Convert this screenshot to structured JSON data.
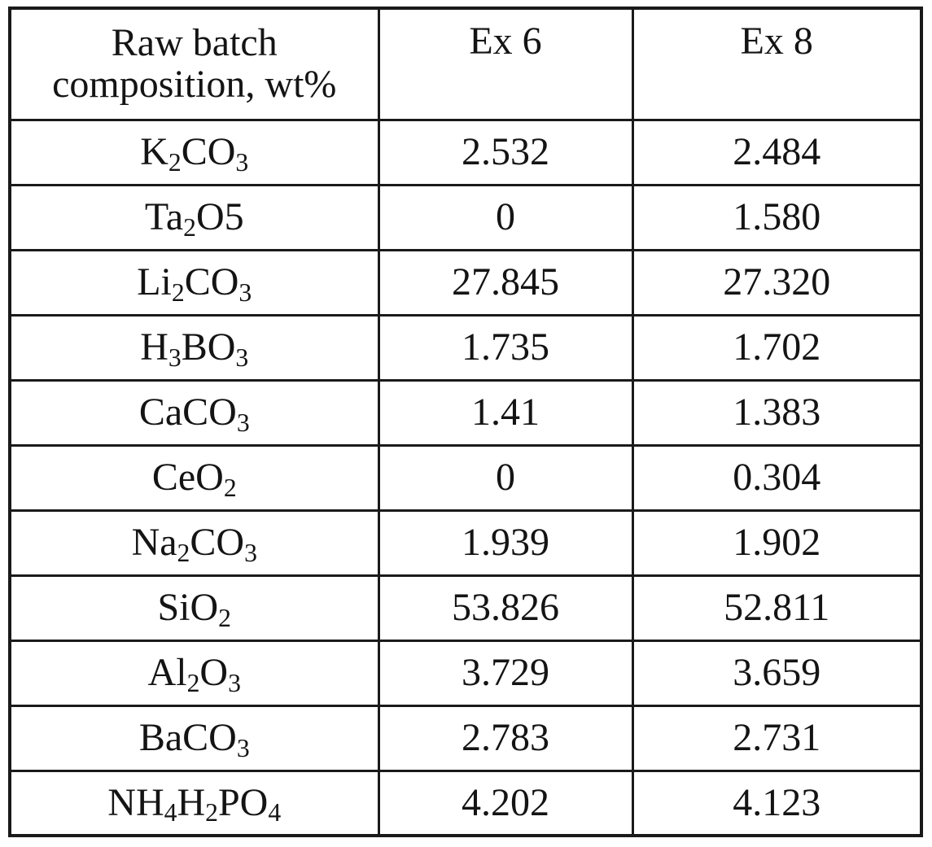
{
  "table": {
    "header": {
      "composition_label": "Raw batch composition, wt%",
      "composition_lines": [
        "Raw batch",
        "composition, wt%"
      ],
      "ex6": "Ex 6",
      "ex8": "Ex 8"
    },
    "rows": [
      {
        "formula": "K_2_CO_3_",
        "ex6": "2.532",
        "ex8": "2.484"
      },
      {
        "formula": "Ta_2_O5",
        "ex6": "0",
        "ex8": "1.580"
      },
      {
        "formula": "Li_2_CO_3_",
        "ex6": "27.845",
        "ex8": "27.320"
      },
      {
        "formula": "H_3_BO_3_",
        "ex6": "1.735",
        "ex8": "1.702"
      },
      {
        "formula": "CaCO_3_",
        "ex6": "1.41",
        "ex8": "1.383"
      },
      {
        "formula": "CeO_2_",
        "ex6": "0",
        "ex8": "0.304"
      },
      {
        "formula": "Na_2_CO_3_",
        "ex6": "1.939",
        "ex8": "1.902"
      },
      {
        "formula": "SiO_2_",
        "ex6": "53.826",
        "ex8": "52.811"
      },
      {
        "formula": "Al_2_O_3_",
        "ex6": "3.729",
        "ex8": "3.659"
      },
      {
        "formula": "BaCO_3_",
        "ex6": "2.783",
        "ex8": "2.731"
      },
      {
        "formula": "NH_4_H_2_PO_4_",
        "ex6": "4.202",
        "ex8": "4.123"
      }
    ],
    "colors": {
      "border": "#1a1a1a",
      "text": "#141414",
      "background": "#ffffff"
    }
  }
}
